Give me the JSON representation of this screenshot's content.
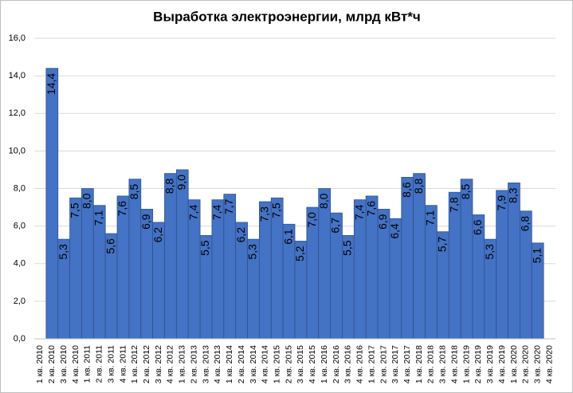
{
  "chart_data": {
    "type": "bar",
    "title": "Выработка электроэнергии, млрд кВт*ч",
    "categories": [
      "1 кв. 2010",
      "2 кв. 2010",
      "3 кв. 2010",
      "4 кв. 2010",
      "1 кв. 2011",
      "2 кв. 2011",
      "3 кв. 2011",
      "4 кв. 2011",
      "1 кв. 2012",
      "2 кв. 2012",
      "3 кв. 2012",
      "4 кв. 2012",
      "1 кв. 2013",
      "2 кв. 2013",
      "3 кв. 2013",
      "4 кв. 2013",
      "1 кв. 2014",
      "2 кв. 2014",
      "3 кв. 2014",
      "4 кв. 2014",
      "1 кв. 2015",
      "2 кв. 2015",
      "3 кв. 2015",
      "4 кв. 2015",
      "1 кв. 2016",
      "2 кв. 2016",
      "3 кв. 2016",
      "4 кв. 2016",
      "1 кв. 2017",
      "2 кв. 2017",
      "3 кв. 2017",
      "4 кв. 2017",
      "1 кв. 2018",
      "2 кв. 2018",
      "3 кв. 2018",
      "4 кв. 2018",
      "1 кв. 2019",
      "2 кв. 2019",
      "3 кв. 2019",
      "4 кв. 2019",
      "1 кв. 2020",
      "2 кв. 2020",
      "3 кв. 2020",
      "4 кв. 2020"
    ],
    "values": [
      null,
      14.4,
      5.3,
      7.5,
      8.0,
      7.1,
      5.6,
      7.6,
      8.5,
      6.9,
      6.2,
      8.8,
      9.0,
      7.4,
      5.5,
      7.4,
      7.7,
      6.2,
      5.3,
      7.3,
      7.5,
      6.1,
      5.2,
      7.0,
      8.0,
      6.7,
      5.5,
      7.4,
      7.6,
      6.9,
      6.4,
      8.6,
      8.8,
      7.1,
      5.7,
      7.8,
      8.5,
      6.6,
      5.3,
      7.9,
      8.3,
      6.8,
      5.1,
      null
    ],
    "value_labels": [
      null,
      "14,4",
      "5,3",
      "7,5",
      "8,0",
      "7,1",
      "5,6",
      "7,6",
      "8,5",
      "6,9",
      "6,2",
      "8,8",
      "9,0",
      "7,4",
      "5,5",
      "7,4",
      "7,7",
      "6,2",
      "5,3",
      "7,3",
      "7,5",
      "6,1",
      "5,2",
      "7,0",
      "8,0",
      "6,7",
      "5,5",
      "7,4",
      "7,6",
      "6,9",
      "6,4",
      "8,6",
      "8,8",
      "7,1",
      "5,7",
      "7,8",
      "8,5",
      "6,6",
      "5,3",
      "7,9",
      "8,3",
      "6,8",
      "5,1",
      null
    ],
    "color": "#4472c4",
    "ylim": [
      0,
      16
    ],
    "yticks": [
      {
        "value": 0,
        "label": "0,0"
      },
      {
        "value": 2,
        "label": "2,0"
      },
      {
        "value": 4,
        "label": "4,0"
      },
      {
        "value": 6,
        "label": "6,0"
      },
      {
        "value": 8,
        "label": "8,0"
      },
      {
        "value": 10,
        "label": "10,0"
      },
      {
        "value": 12,
        "label": "12,0"
      },
      {
        "value": 14,
        "label": "14,0"
      },
      {
        "value": 16,
        "label": "16,0"
      }
    ],
    "grid": true
  }
}
